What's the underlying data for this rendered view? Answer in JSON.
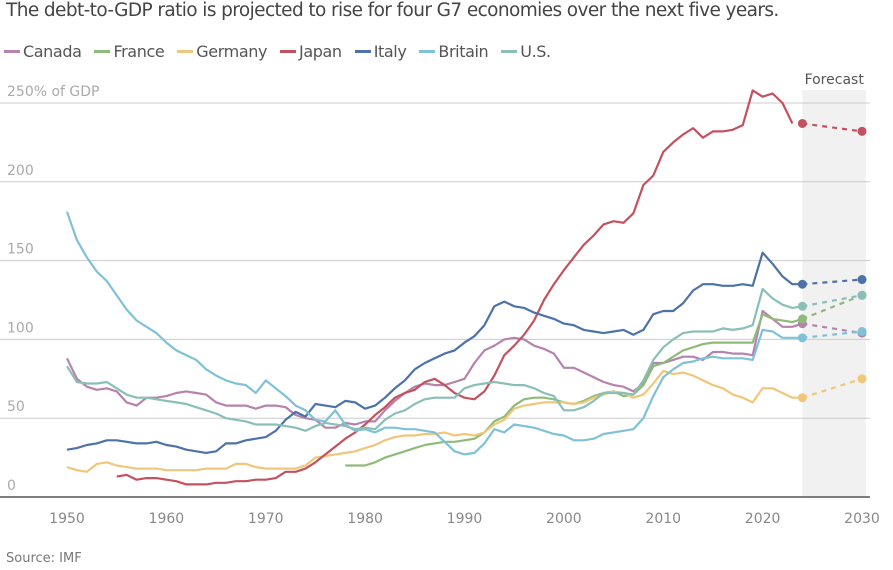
{
  "title": "The debt-to-GDP ratio is projected to rise for four G7 economies over the next five years.",
  "source": "Source: IMF",
  "chart_data": {
    "type": "line",
    "title": "The debt-to-GDP ratio is projected to rise for four G7 economies over the next five years.",
    "ylabel": "250% of GDP",
    "xlim": [
      1950,
      2030
    ],
    "ylim": [
      0,
      250
    ],
    "xticks": [
      1950,
      1960,
      1970,
      1980,
      1990,
      2000,
      2010,
      2020,
      2030
    ],
    "yticks": [
      0,
      50,
      100,
      150,
      200,
      250
    ],
    "ytick_labels": [
      "0",
      "50",
      "100",
      "150",
      "200",
      "250% of GDP"
    ],
    "forecast_label": "Forecast",
    "forecast_range": [
      2024,
      2030
    ],
    "legend_position": "top-left",
    "series": [
      {
        "name": "Canada",
        "color": "#b583ad",
        "start": 1950,
        "values": [
          88,
          75,
          70,
          68,
          69,
          67,
          60,
          58,
          63,
          63,
          64,
          66,
          67,
          66,
          65,
          60,
          58,
          58,
          58,
          56,
          58,
          58,
          57,
          52,
          50,
          49,
          44,
          44,
          47,
          46,
          48,
          48,
          55,
          61,
          66,
          70,
          72,
          71,
          71,
          73,
          75,
          85,
          93,
          96,
          100,
          101,
          100,
          96,
          94,
          91,
          82,
          82,
          79,
          76,
          73,
          71,
          70,
          67,
          72,
          85,
          85,
          87,
          89,
          89,
          87,
          92,
          92,
          91,
          91,
          90,
          118,
          113,
          108,
          108,
          110
        ],
        "forecast": [
          110,
          104
        ]
      },
      {
        "name": "France",
        "color": "#8fbb78",
        "start": 1978,
        "values": [
          20,
          20,
          20,
          22,
          25,
          27,
          29,
          31,
          33,
          34,
          35,
          35,
          36,
          37,
          41,
          48,
          51,
          58,
          62,
          63,
          63,
          62,
          60,
          59,
          61,
          64,
          66,
          67,
          64,
          65,
          71,
          83,
          85,
          89,
          93,
          95,
          97,
          98,
          98,
          98,
          98,
          98,
          116,
          113,
          112,
          111,
          113
        ],
        "forecast": [
          113,
          128
        ]
      },
      {
        "name": "Germany",
        "color": "#f0c77a",
        "start": 1950,
        "values": [
          19,
          17,
          16,
          21,
          22,
          20,
          19,
          18,
          18,
          18,
          17,
          17,
          17,
          17,
          18,
          18,
          18,
          21,
          21,
          19,
          18,
          18,
          18,
          18,
          20,
          25,
          26,
          27,
          28,
          29,
          31,
          33,
          36,
          38,
          39,
          39,
          40,
          40,
          41,
          39,
          40,
          39,
          41,
          46,
          49,
          56,
          58,
          59,
          60,
          60,
          60,
          59,
          60,
          63,
          65,
          67,
          66,
          63,
          65,
          72,
          80,
          78,
          79,
          77,
          74,
          71,
          69,
          65,
          63,
          60,
          69,
          69,
          66,
          63,
          63
        ],
        "forecast": [
          63,
          75
        ]
      },
      {
        "name": "Japan",
        "color": "#c3525f",
        "start": 1955,
        "values": [
          13,
          14,
          11,
          12,
          12,
          11,
          10,
          8,
          8,
          8,
          9,
          9,
          10,
          10,
          11,
          11,
          12,
          16,
          16,
          18,
          22,
          27,
          32,
          37,
          41,
          46,
          52,
          57,
          63,
          66,
          68,
          73,
          75,
          71,
          66,
          63,
          62,
          67,
          77,
          90,
          96,
          103,
          112,
          125,
          135,
          144,
          152,
          160,
          166,
          173,
          175,
          174,
          180,
          198,
          204,
          219,
          225,
          230,
          234,
          228,
          232,
          232,
          233,
          236,
          258,
          254,
          256,
          250,
          237
        ],
        "forecast": [
          237,
          232
        ]
      },
      {
        "name": "Italy",
        "color": "#4c72a8",
        "start": 1950,
        "values": [
          30,
          31,
          33,
          34,
          36,
          36,
          35,
          34,
          34,
          35,
          33,
          32,
          30,
          29,
          28,
          29,
          34,
          34,
          36,
          37,
          38,
          42,
          49,
          54,
          51,
          59,
          58,
          57,
          61,
          60,
          56,
          58,
          63,
          69,
          74,
          81,
          85,
          88,
          91,
          93,
          98,
          102,
          109,
          121,
          124,
          121,
          120,
          117,
          115,
          113,
          110,
          109,
          106,
          105,
          104,
          105,
          106,
          103,
          106,
          116,
          118,
          118,
          123,
          131,
          135,
          135,
          134,
          134,
          135,
          134,
          155,
          148,
          140,
          135,
          135
        ],
        "forecast": [
          135,
          138
        ]
      },
      {
        "name": "Britain",
        "color": "#7fc1d6",
        "start": 1950,
        "values": [
          181,
          163,
          152,
          143,
          137,
          128,
          119,
          112,
          108,
          104,
          98,
          93,
          90,
          87,
          81,
          77,
          74,
          72,
          71,
          66,
          74,
          69,
          64,
          58,
          55,
          49,
          48,
          55,
          46,
          42,
          43,
          41,
          44,
          44,
          43,
          43,
          42,
          41,
          35,
          29,
          27,
          28,
          34,
          43,
          41,
          46,
          45,
          44,
          42,
          40,
          39,
          36,
          36,
          37,
          40,
          41,
          42,
          43,
          50,
          64,
          76,
          81,
          85,
          86,
          88,
          89,
          88,
          88,
          88,
          87,
          106,
          105,
          101,
          101,
          101
        ],
        "forecast": [
          101,
          105
        ]
      },
      {
        "name": "U.S.",
        "color": "#8abfb7",
        "start": 1950,
        "values": [
          83,
          73,
          72,
          72,
          73,
          69,
          65,
          63,
          63,
          62,
          61,
          60,
          59,
          57,
          55,
          53,
          50,
          49,
          48,
          46,
          46,
          46,
          45,
          44,
          42,
          45,
          47,
          46,
          45,
          43,
          44,
          43,
          49,
          53,
          55,
          59,
          62,
          63,
          63,
          63,
          69,
          71,
          72,
          73,
          72,
          71,
          71,
          69,
          66,
          64,
          55,
          55,
          57,
          61,
          66,
          66,
          66,
          65,
          74,
          87,
          95,
          100,
          104,
          105,
          105,
          105,
          107,
          106,
          107,
          109,
          132,
          126,
          122,
          120,
          121
        ],
        "forecast": [
          121,
          128
        ]
      }
    ]
  }
}
